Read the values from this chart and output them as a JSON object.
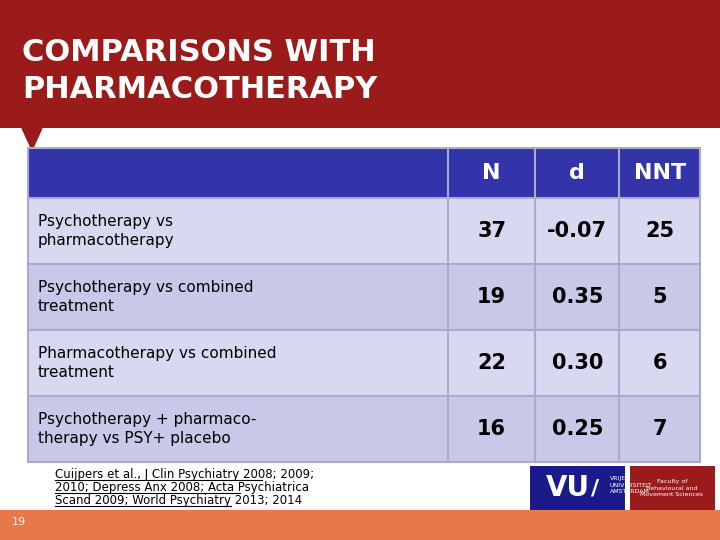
{
  "title_line1": "COMPARISONS WITH",
  "title_line2": "PHARMACOTHERAPY",
  "title_bg_color": "#9B1B1B",
  "title_text_color": "#FFFFFF",
  "slide_bg_color": "#FFFFFF",
  "header_bg_color": "#3333AA",
  "header_text_color": "#FFFFFF",
  "row_colors": [
    "#D8D8F0",
    "#C8C8E8"
  ],
  "grid_line_color": "#AAAACC",
  "col_headers": [
    "N",
    "d",
    "NNT"
  ],
  "rows": [
    {
      "label": "Psychotherapy vs\npharmacotherapy",
      "N": "37",
      "d": "-0.07",
      "NNT": "25"
    },
    {
      "label": "Psychotherapy vs combined\ntreatment",
      "N": "19",
      "d": "0.35",
      "NNT": "5"
    },
    {
      "label": "Pharmacotherapy vs combined\ntreatment",
      "N": "22",
      "d": "0.30",
      "NNT": "6"
    },
    {
      "label": "Psychotherapy + pharmaco-\ntherapy vs PSY+ placebo",
      "N": "16",
      "d": "0.25",
      "NNT": "7"
    }
  ],
  "citation_line1": "Cuijpers et al., J Clin Psychiatry 2008; 2009;",
  "citation_line2": "2010; Depress Anx 2008; Acta Psychiatrica",
  "citation_line3": "Scand 2009; World Psychiatry 2013; 2014",
  "page_number": "19",
  "arrow_color": "#9B1B1B",
  "footer_bg_color": "#E8784A",
  "vu_bg_color": "#1A1A8A",
  "faculty_bg_color": "#9B1B1B"
}
